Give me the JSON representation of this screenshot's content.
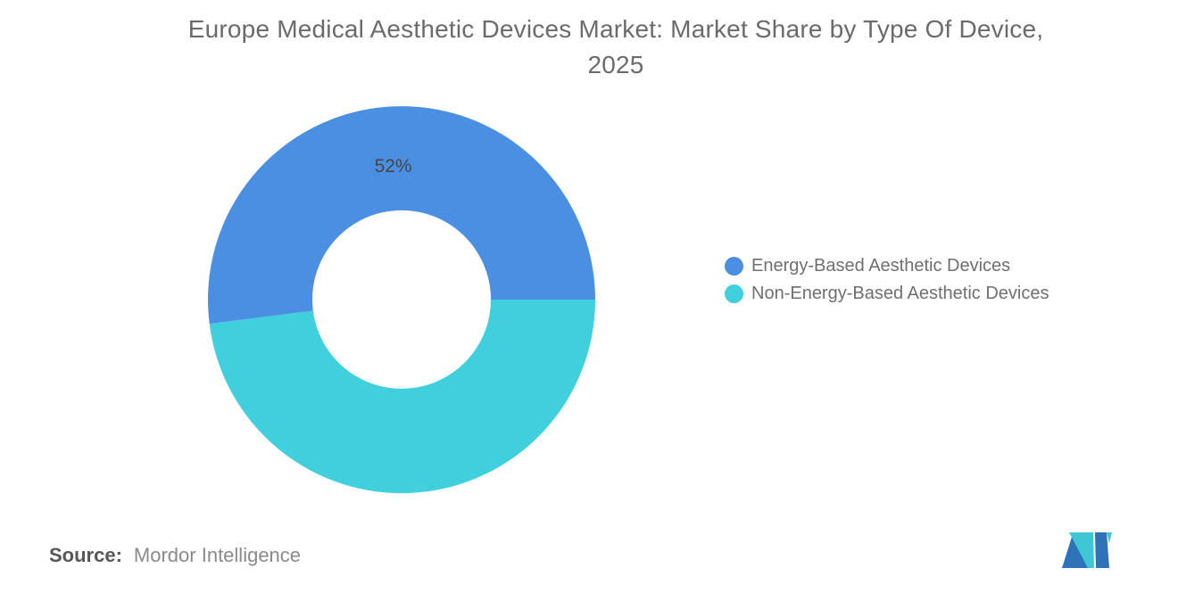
{
  "chart_data": {
    "type": "pie",
    "subtype": "donut",
    "title": "Europe Medical Aesthetic Devices Market: Market Share by Type Of Device,\n2025",
    "slices": [
      {
        "label": "Energy-Based Aesthetic Devices",
        "value": 52,
        "color": "#4A8FE2",
        "data_label": "52%"
      },
      {
        "label": "Non-Energy-Based Aesthetic Devices",
        "value": 48,
        "color": "#40CFDC",
        "data_label": ""
      }
    ],
    "total": 100,
    "start_angle_deg": 0,
    "direction": "counterclockwise",
    "inner_radius_ratio": 0.46,
    "legend_position": "right",
    "data_label_color": "#464646",
    "title_color": "#6B6B6B"
  },
  "source": {
    "label": "Source:",
    "value": "Mordor Intelligence"
  },
  "logo": {
    "name": "mordor-intelligence-logo",
    "blue": "#2E73B8",
    "teal": "#3EC6D4"
  }
}
